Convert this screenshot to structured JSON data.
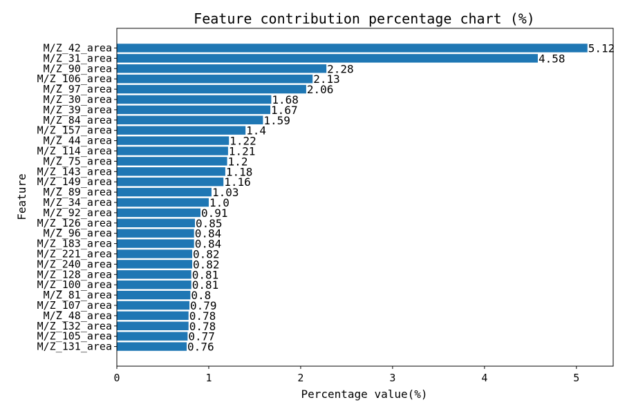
{
  "chart_data": {
    "type": "bar",
    "orientation": "horizontal",
    "title": "Feature contribution percentage chart (%)",
    "xlabel": "Percentage value(%)",
    "ylabel": "Feature",
    "xlim": [
      0,
      5.4
    ],
    "xticks": [
      "0",
      "1",
      "2",
      "3",
      "4",
      "5"
    ],
    "grid": false,
    "bar_color": "#1f77b4",
    "categories": [
      "M/Z_42_area",
      "M/Z_31_area",
      "M/Z_90_area",
      "M/Z_106_area",
      "M/Z_97_area",
      "M/Z_30_area",
      "M/Z_39_area",
      "M/Z_84_area",
      "M/Z_157_area",
      "M/Z_44_area",
      "M/Z_114_area",
      "M/Z_75_area",
      "M/Z_143_area",
      "M/Z_149_area",
      "M/Z_89_area",
      "M/Z_34_area",
      "M/Z_92_area",
      "M/Z_126_area",
      "M/Z_96_area",
      "M/Z_183_area",
      "M/Z_221_area",
      "M/Z_240_area",
      "M/Z_128_area",
      "M/Z_100_area",
      "M/Z_81_area",
      "M/Z_107_area",
      "M/Z_48_area",
      "M/Z_132_area",
      "M/Z_105_area",
      "M/Z_131_area"
    ],
    "values": [
      5.12,
      4.58,
      2.28,
      2.13,
      2.06,
      1.68,
      1.67,
      1.59,
      1.4,
      1.22,
      1.21,
      1.2,
      1.18,
      1.16,
      1.03,
      1.0,
      0.91,
      0.85,
      0.84,
      0.84,
      0.82,
      0.82,
      0.81,
      0.81,
      0.8,
      0.79,
      0.78,
      0.78,
      0.77,
      0.76
    ],
    "data_labels": [
      "5.12",
      "4.58",
      "2.28",
      "2.13",
      "2.06",
      "1.68",
      "1.67",
      "1.59",
      "1.4",
      "1.22",
      "1.21",
      "1.2",
      "1.18",
      "1.16",
      "1.03",
      "1.0",
      "0.91",
      "0.85",
      "0.84",
      "0.84",
      "0.82",
      "0.82",
      "0.81",
      "0.81",
      "0.8",
      "0.79",
      "0.78",
      "0.78",
      "0.77",
      "0.76"
    ]
  }
}
